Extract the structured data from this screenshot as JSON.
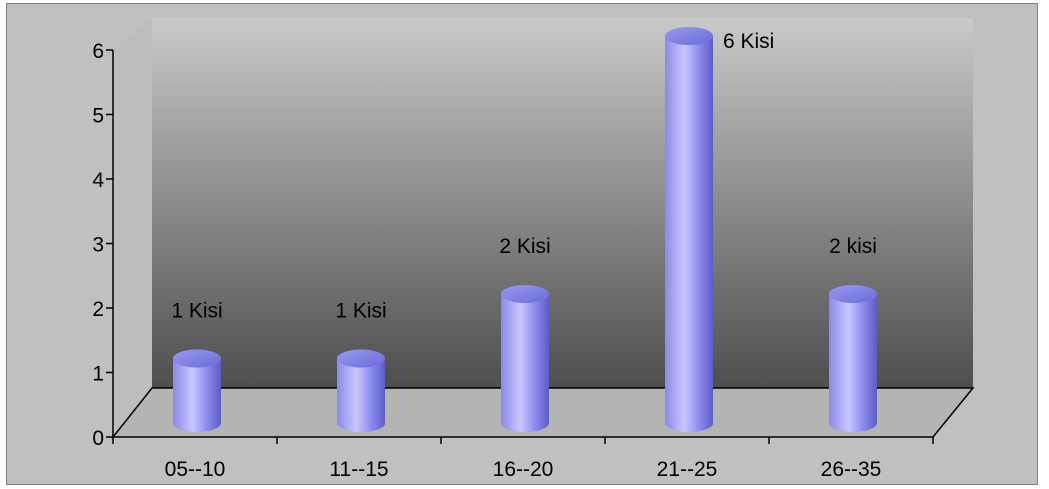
{
  "chart_data": {
    "type": "bar",
    "style": "3d-cylinder",
    "categories": [
      "05--10",
      "11--15",
      "16--20",
      "21--25",
      "26--35"
    ],
    "values": [
      1,
      1,
      2,
      6,
      2
    ],
    "data_labels": [
      "1 Kisi",
      "1 Kisi",
      "2 Kisi",
      "6 Kisi",
      "2 kisi"
    ],
    "y_ticks": [
      "0",
      "1",
      "2",
      "3",
      "4",
      "5",
      "6"
    ],
    "ylim": [
      0,
      6
    ],
    "title": "",
    "xlabel": "",
    "ylabel": "",
    "legend": "none",
    "grid": false,
    "colors": {
      "bar": "#8c8cf0",
      "bar_light": "#c4c4ff",
      "bar_dark": "#5a5ad2",
      "background_top": "#c9c9c9",
      "background_bottom": "#505050",
      "floor": "#b4b4b4"
    }
  }
}
